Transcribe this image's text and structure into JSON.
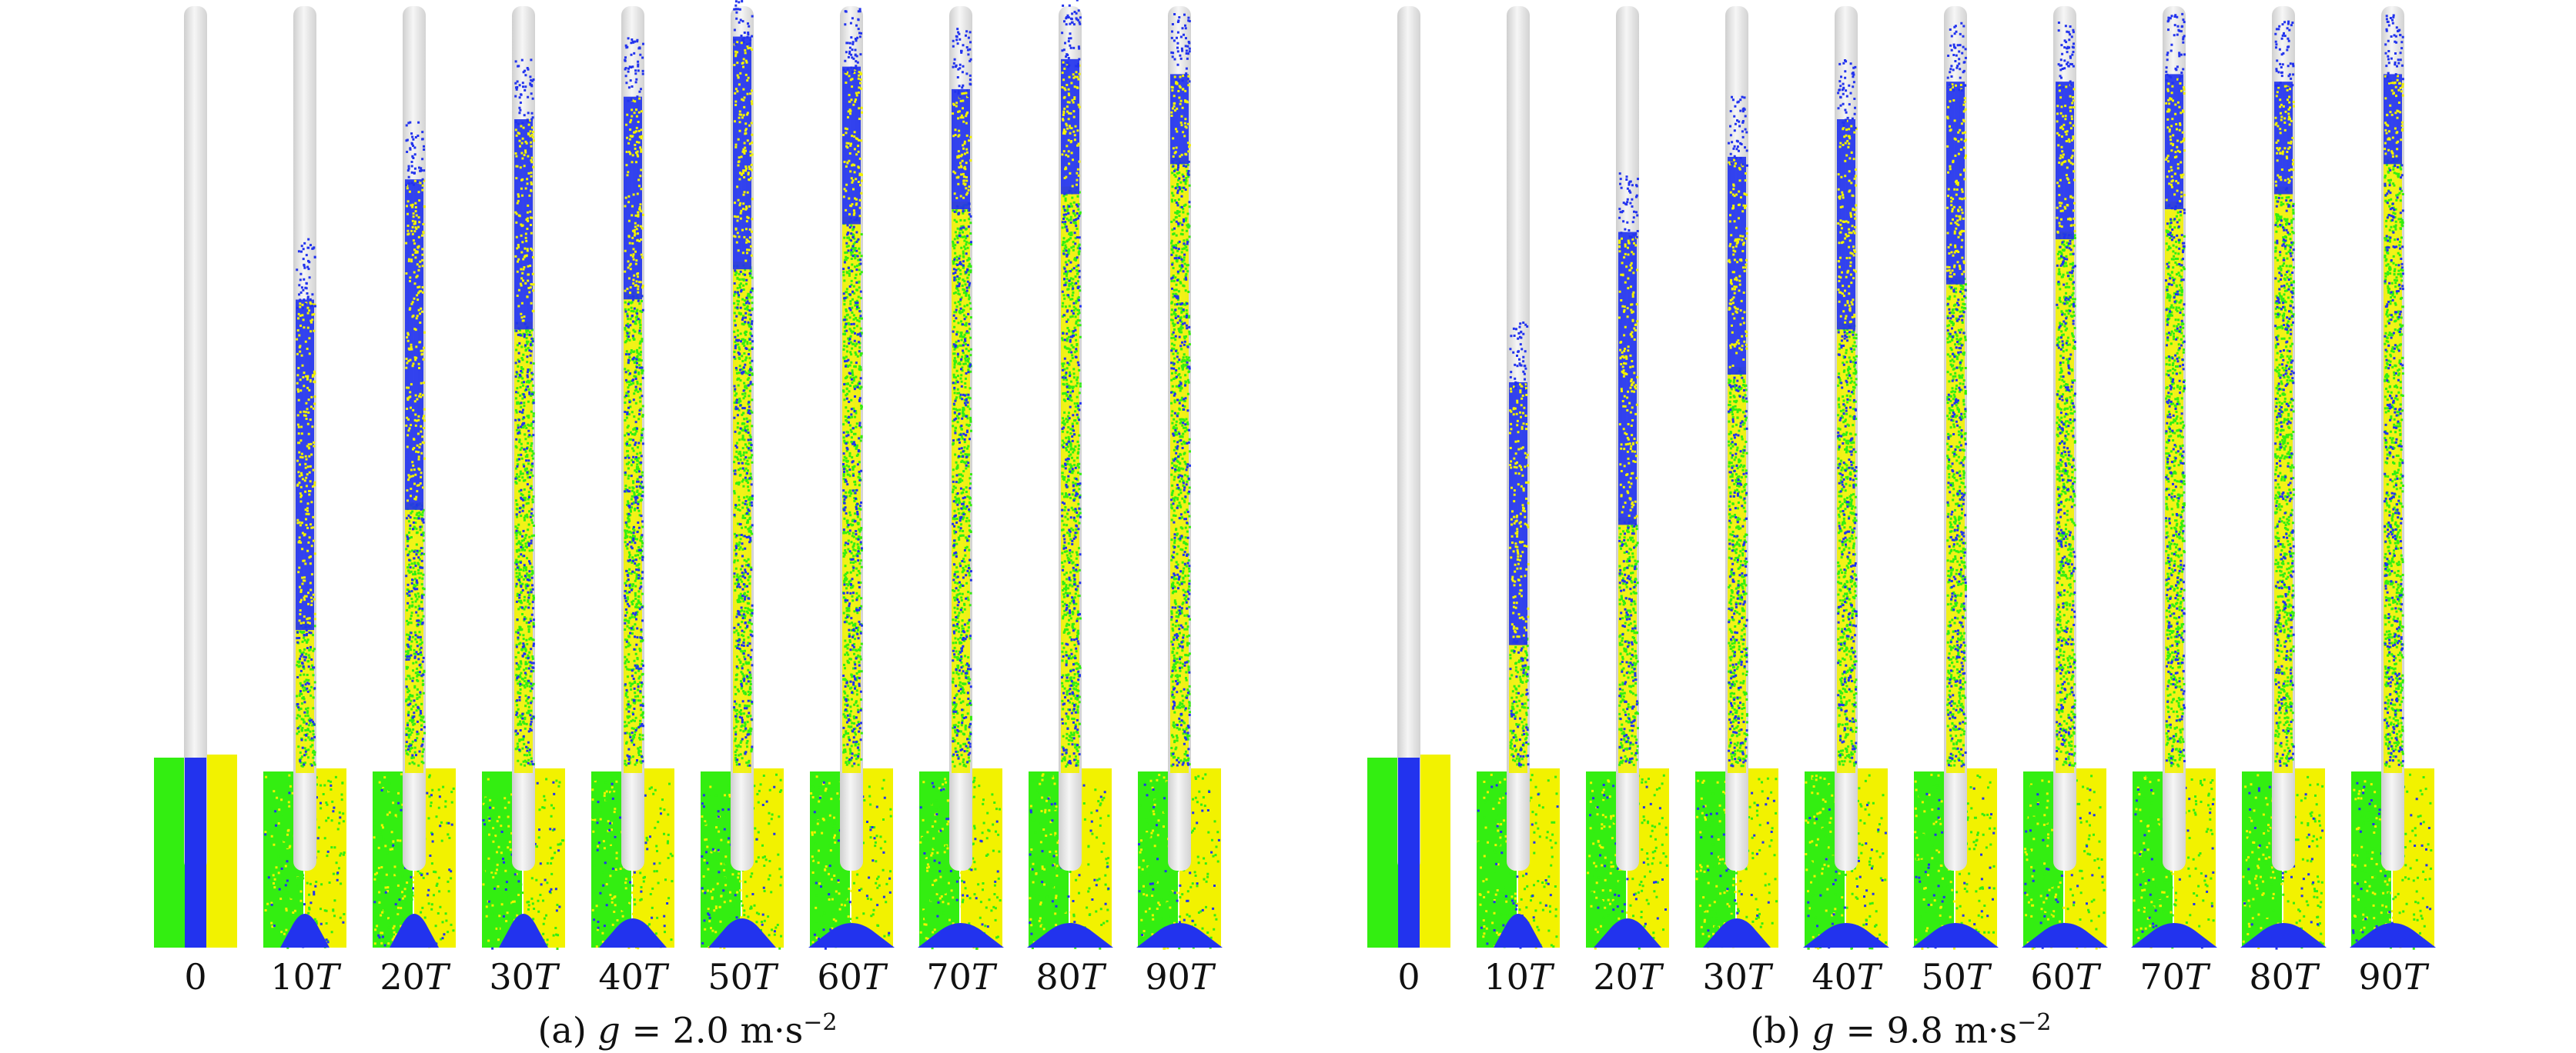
{
  "colors": {
    "background": "#ffffff",
    "tube": "#e4e4e4",
    "blue_particles": "#2233ee",
    "yellow_particles": "#f2f200",
    "green_particles": "#33ee11"
  },
  "panels": [
    {
      "id": "a",
      "caption": {
        "prefix": "(a) ",
        "var": "g",
        "rest": " = 2.0 m·s",
        "exp": "−2"
      },
      "frames": [
        {
          "num": "0",
          "unit": "",
          "blue_front": 0.0,
          "mix_front": 0.0,
          "crater": 0
        },
        {
          "num": "10",
          "unit": "T",
          "blue_front": 0.63,
          "mix_front": 0.18,
          "crater": 1
        },
        {
          "num": "20",
          "unit": "T",
          "blue_front": 0.79,
          "mix_front": 0.34,
          "crater": 1
        },
        {
          "num": "30",
          "unit": "T",
          "blue_front": 0.87,
          "mix_front": 0.58,
          "crater": 1
        },
        {
          "num": "40",
          "unit": "T",
          "blue_front": 0.9,
          "mix_front": 0.62,
          "crater": 2
        },
        {
          "num": "50",
          "unit": "T",
          "blue_front": 0.98,
          "mix_front": 0.66,
          "crater": 2
        },
        {
          "num": "60",
          "unit": "T",
          "blue_front": 0.94,
          "mix_front": 0.72,
          "crater": 3
        },
        {
          "num": "70",
          "unit": "T",
          "blue_front": 0.91,
          "mix_front": 0.74,
          "crater": 3
        },
        {
          "num": "80",
          "unit": "T",
          "blue_front": 0.95,
          "mix_front": 0.76,
          "crater": 3
        },
        {
          "num": "90",
          "unit": "T",
          "blue_front": 0.93,
          "mix_front": 0.8,
          "crater": 3
        }
      ]
    },
    {
      "id": "b",
      "caption": {
        "prefix": "(b) ",
        "var": "g",
        "rest": " = 9.8 m·s",
        "exp": "−2"
      },
      "frames": [
        {
          "num": "0",
          "unit": "",
          "blue_front": 0.0,
          "mix_front": 0.0,
          "crater": 0
        },
        {
          "num": "10",
          "unit": "T",
          "blue_front": 0.52,
          "mix_front": 0.16,
          "crater": 1
        },
        {
          "num": "20",
          "unit": "T",
          "blue_front": 0.72,
          "mix_front": 0.32,
          "crater": 2
        },
        {
          "num": "30",
          "unit": "T",
          "blue_front": 0.82,
          "mix_front": 0.52,
          "crater": 2
        },
        {
          "num": "40",
          "unit": "T",
          "blue_front": 0.87,
          "mix_front": 0.58,
          "crater": 3
        },
        {
          "num": "50",
          "unit": "T",
          "blue_front": 0.92,
          "mix_front": 0.64,
          "crater": 3
        },
        {
          "num": "60",
          "unit": "T",
          "blue_front": 0.92,
          "mix_front": 0.7,
          "crater": 3
        },
        {
          "num": "70",
          "unit": "T",
          "blue_front": 0.93,
          "mix_front": 0.74,
          "crater": 3
        },
        {
          "num": "80",
          "unit": "T",
          "blue_front": 0.92,
          "mix_front": 0.76,
          "crater": 3
        },
        {
          "num": "90",
          "unit": "T",
          "blue_front": 0.93,
          "mix_front": 0.8,
          "crater": 3
        }
      ]
    }
  ]
}
